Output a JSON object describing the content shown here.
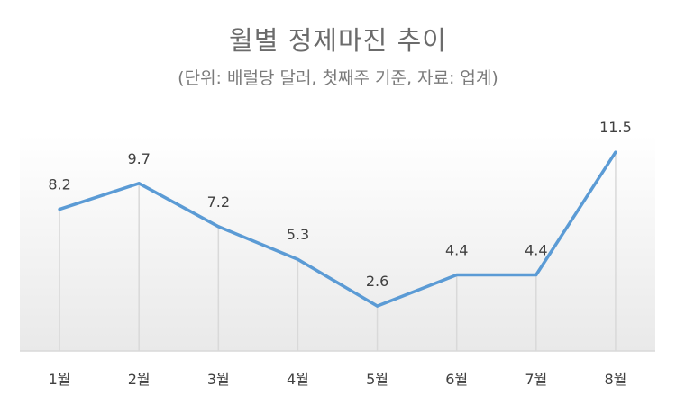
{
  "title": "월별 정제마진 추이",
  "subtitle": "(단위: 배럴당 달러, 첫째주 기준, 자료: 업계)",
  "chart_data": {
    "type": "line",
    "title": "월별 정제마진 추이",
    "subtitle": "(단위: 배럴당 달러, 첫째주 기준, 자료: 업계)",
    "categories": [
      "1월",
      "2월",
      "3월",
      "4월",
      "5월",
      "6월",
      "7월",
      "8월"
    ],
    "series": [
      {
        "values": [
          8.2,
          9.7,
          7.2,
          5.3,
          2.6,
          4.4,
          4.4,
          11.5
        ],
        "data_labels": [
          "8.2",
          "9.7",
          "7.2",
          "5.3",
          "2.6",
          "4.4",
          "4.4",
          "11.5"
        ]
      }
    ],
    "xlabel": "",
    "ylabel": "",
    "ylim": [
      0,
      12.5
    ],
    "grid": false,
    "legend": "none",
    "drop_lines": true,
    "line_color": "#5b9bd5",
    "drop_line_color": "#d9d9d9",
    "plot_fill_top": "#ffffff",
    "plot_fill_bottom": "#e9e9e9"
  }
}
